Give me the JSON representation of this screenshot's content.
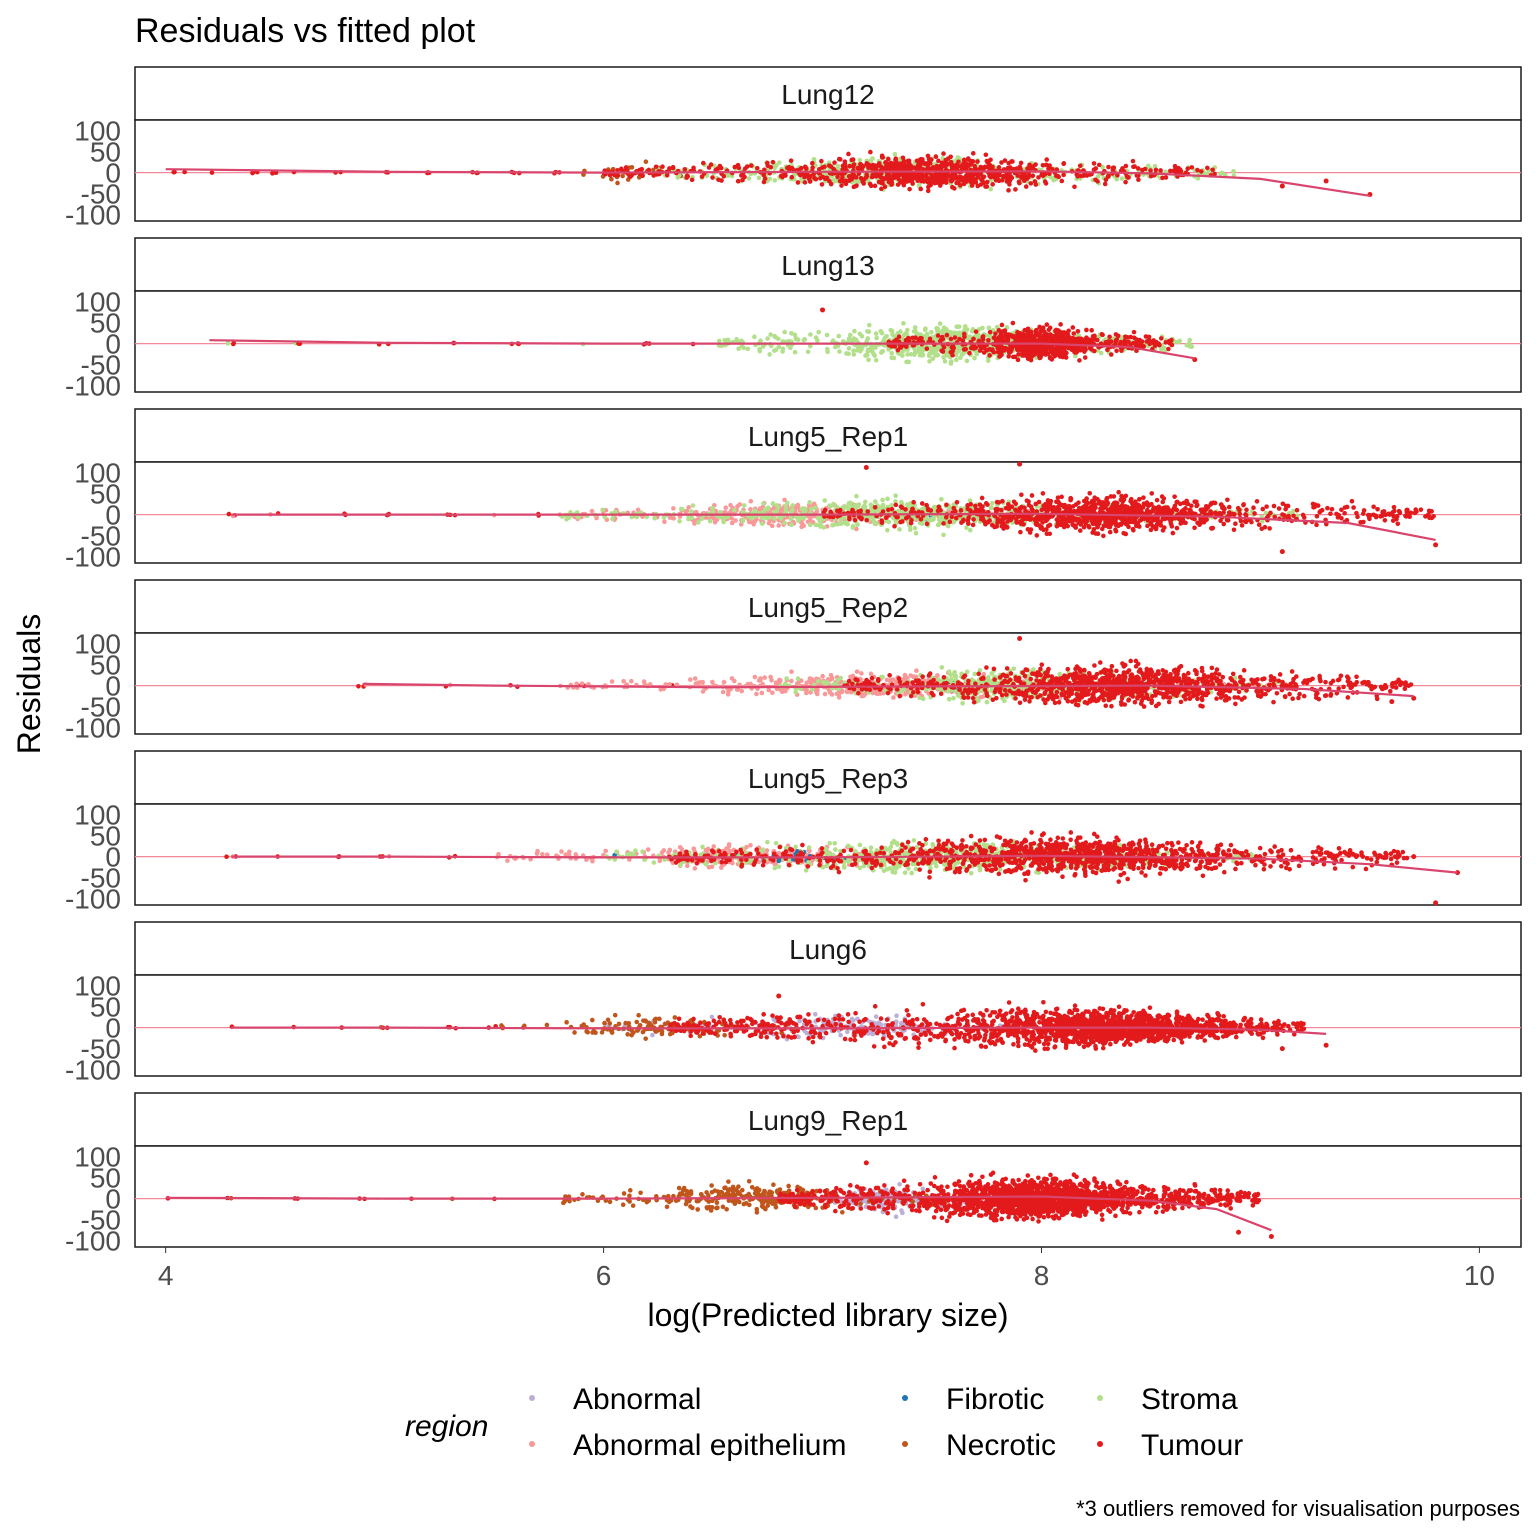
{
  "chart_data": {
    "type": "scatter",
    "title": "Residuals vs fitted plot",
    "xlabel": "log(Predicted library size)",
    "ylabel": "Residuals",
    "xlim": [
      3.86,
      10.19
    ],
    "ylim": [
      -115,
      125
    ],
    "x_ticks": [
      "4",
      "6",
      "8",
      "10"
    ],
    "y_ticks": [
      "100",
      "50",
      "0",
      "-50",
      "-100"
    ],
    "caption": "*3 outliers removed for visualisation purposes",
    "legend": {
      "title": "region",
      "position": "bottom",
      "entries": [
        {
          "name": "Abnormal",
          "color": "#bcaed6"
        },
        {
          "name": "Abnormal epithelium",
          "color": "#f89898"
        },
        {
          "name": "Fibrotic",
          "color": "#1f78b4"
        },
        {
          "name": "Necrotic",
          "color": "#c0561b"
        },
        {
          "name": "Stroma",
          "color": "#b2df8a"
        },
        {
          "name": "Tumour",
          "color": "#e31a1c"
        }
      ]
    },
    "reference_line": {
      "y": 0,
      "color": "#f28a9a"
    },
    "smooth_color": "#d9456c",
    "panels": [
      {
        "name": "Lung12",
        "smooth": [
          [
            4.0,
            8
          ],
          [
            5.0,
            2
          ],
          [
            6.0,
            0
          ],
          [
            7.0,
            2
          ],
          [
            8.0,
            3
          ],
          [
            8.5,
            -2
          ],
          [
            9.0,
            -15
          ],
          [
            9.5,
            -55
          ]
        ],
        "groups": [
          {
            "region": "Tumour",
            "x_range": [
              6.0,
              8.8
            ],
            "spread": 60,
            "n": 900,
            "dense_center": 7.5
          },
          {
            "region": "Stroma",
            "x_range": [
              6.2,
              8.9
            ],
            "spread": 55,
            "n": 500,
            "dense_center": 7.2
          },
          {
            "region": "Necrotic",
            "x_range": [
              5.9,
              6.4
            ],
            "spread": 40,
            "n": 30,
            "dense_center": 6.1
          }
        ],
        "sparse_x": [
          4.03,
          4.1,
          4.2,
          4.4,
          4.5,
          4.6,
          4.8,
          5.0,
          5.2,
          5.4,
          5.6,
          5.8
        ],
        "outliers": [
          [
            9.5,
            -52
          ],
          [
            9.3,
            -20
          ],
          [
            9.1,
            -32
          ]
        ]
      },
      {
        "name": "Lung13",
        "smooth": [
          [
            4.2,
            8
          ],
          [
            5.0,
            2
          ],
          [
            6.0,
            0
          ],
          [
            7.0,
            0
          ],
          [
            8.0,
            0
          ],
          [
            8.4,
            -8
          ],
          [
            8.7,
            -35
          ]
        ],
        "groups": [
          {
            "region": "Stroma",
            "x_range": [
              6.5,
              8.7
            ],
            "spread": 65,
            "n": 800,
            "dense_center": 7.6
          },
          {
            "region": "Tumour",
            "x_range": [
              7.3,
              8.6
            ],
            "spread": 60,
            "n": 700,
            "dense_center": 8.0
          }
        ],
        "sparse_x": [
          4.3,
          4.6,
          5.0,
          5.3,
          5.6,
          5.9,
          6.2,
          6.4
        ],
        "outliers": [
          [
            7.0,
            80
          ],
          [
            8.7,
            -38
          ]
        ]
      },
      {
        "name": "Lung5_Rep1",
        "smooth": [
          [
            4.3,
            0
          ],
          [
            5.0,
            0
          ],
          [
            6.0,
            0
          ],
          [
            7.0,
            0
          ],
          [
            8.0,
            2
          ],
          [
            8.8,
            -5
          ],
          [
            9.4,
            -20
          ],
          [
            9.8,
            -60
          ]
        ],
        "groups": [
          {
            "region": "Abnormal epithelium",
            "x_range": [
              5.8,
              8.0
            ],
            "spread": 45,
            "n": 350,
            "dense_center": 6.8
          },
          {
            "region": "Stroma",
            "x_range": [
              5.8,
              9.2
            ],
            "spread": 55,
            "n": 600,
            "dense_center": 7.4
          },
          {
            "region": "Tumour",
            "x_range": [
              7.0,
              9.8
            ],
            "spread": 70,
            "n": 1100,
            "dense_center": 8.3
          },
          {
            "region": "Fibrotic",
            "x_range": [
              7.3,
              7.6
            ],
            "spread": 25,
            "n": 15,
            "dense_center": 7.45
          }
        ],
        "sparse_x": [
          4.3,
          4.5,
          4.8,
          5.0,
          5.3,
          5.5,
          5.7
        ],
        "outliers": [
          [
            7.2,
            112
          ],
          [
            7.9,
            125
          ],
          [
            9.8,
            -72
          ],
          [
            9.1,
            -88
          ]
        ]
      },
      {
        "name": "Lung5_Rep2",
        "smooth": [
          [
            4.9,
            4
          ],
          [
            5.5,
            0
          ],
          [
            6.5,
            -4
          ],
          [
            7.5,
            -2
          ],
          [
            8.5,
            0
          ],
          [
            9.2,
            -8
          ],
          [
            9.7,
            -25
          ]
        ],
        "groups": [
          {
            "region": "Abnormal epithelium",
            "x_range": [
              5.8,
              9.2
            ],
            "spread": 45,
            "n": 450,
            "dense_center": 7.2
          },
          {
            "region": "Stroma",
            "x_range": [
              6.8,
              9.1
            ],
            "spread": 60,
            "n": 500,
            "dense_center": 7.9
          },
          {
            "region": "Tumour",
            "x_range": [
              7.1,
              9.7
            ],
            "spread": 75,
            "n": 1100,
            "dense_center": 8.4
          },
          {
            "region": "Fibrotic",
            "x_range": [
              7.5,
              7.7
            ],
            "spread": 20,
            "n": 12,
            "dense_center": 7.6
          }
        ],
        "sparse_x": [
          4.9,
          5.3,
          5.6,
          5.9,
          6.1,
          6.3
        ],
        "outliers": [
          [
            7.9,
            112
          ],
          [
            9.6,
            -38
          ],
          [
            9.7,
            -30
          ]
        ]
      },
      {
        "name": "Lung5_Rep3",
        "smooth": [
          [
            4.3,
            0
          ],
          [
            5.0,
            0
          ],
          [
            6.0,
            -2
          ],
          [
            7.0,
            -2
          ],
          [
            8.0,
            2
          ],
          [
            9.0,
            -5
          ],
          [
            9.5,
            -18
          ],
          [
            9.9,
            -38
          ]
        ],
        "groups": [
          {
            "region": "Abnormal epithelium",
            "x_range": [
              5.5,
              8.0
            ],
            "spread": 40,
            "n": 350,
            "dense_center": 6.7
          },
          {
            "region": "Stroma",
            "x_range": [
              6.0,
              9.0
            ],
            "spread": 60,
            "n": 600,
            "dense_center": 7.6
          },
          {
            "region": "Tumour",
            "x_range": [
              6.3,
              9.7
            ],
            "spread": 70,
            "n": 1200,
            "dense_center": 8.2
          },
          {
            "region": "Fibrotic",
            "x_range": [
              6.0,
              7.3
            ],
            "spread": 20,
            "n": 25,
            "dense_center": 6.9
          }
        ],
        "sparse_x": [
          4.3,
          4.5,
          4.8,
          5.0,
          5.3
        ],
        "outliers": [
          [
            9.9,
            -38
          ],
          [
            9.8,
            -110
          ],
          [
            9.6,
            -20
          ],
          [
            9.7,
            0
          ]
        ]
      },
      {
        "name": "Lung6",
        "smooth": [
          [
            4.3,
            0
          ],
          [
            5.0,
            0
          ],
          [
            6.0,
            -2
          ],
          [
            7.0,
            -2
          ],
          [
            8.0,
            0
          ],
          [
            8.5,
            0
          ],
          [
            9.0,
            -5
          ],
          [
            9.3,
            -15
          ]
        ],
        "groups": [
          {
            "region": "Necrotic",
            "x_range": [
              5.5,
              6.9
            ],
            "spread": 40,
            "n": 120,
            "dense_center": 6.2
          },
          {
            "region": "Abnormal",
            "x_range": [
              6.0,
              7.9
            ],
            "spread": 45,
            "n": 200,
            "dense_center": 7.2
          },
          {
            "region": "Tumour",
            "x_range": [
              6.3,
              9.2
            ],
            "spread": 75,
            "n": 1800,
            "dense_center": 8.3
          }
        ],
        "sparse_x": [
          4.3,
          4.6,
          4.8,
          5.0,
          5.3,
          5.5
        ],
        "outliers": [
          [
            6.8,
            75
          ],
          [
            9.3,
            -42
          ],
          [
            9.1,
            -50
          ]
        ]
      },
      {
        "name": "Lung9_Rep1",
        "smooth": [
          [
            4.0,
            2
          ],
          [
            5.0,
            0
          ],
          [
            6.0,
            0
          ],
          [
            7.0,
            2
          ],
          [
            8.0,
            5
          ],
          [
            8.5,
            -5
          ],
          [
            8.8,
            -25
          ],
          [
            9.05,
            -75
          ]
        ],
        "groups": [
          {
            "region": "Necrotic",
            "x_range": [
              5.8,
              7.6
            ],
            "spread": 50,
            "n": 300,
            "dense_center": 6.7
          },
          {
            "region": "Abnormal",
            "x_range": [
              7.0,
              7.8
            ],
            "spread": 50,
            "n": 150,
            "dense_center": 7.3
          },
          {
            "region": "Tumour",
            "x_range": [
              6.8,
              9.0
            ],
            "spread": 75,
            "n": 1800,
            "dense_center": 8.0
          }
        ],
        "sparse_x": [
          4.0,
          4.3,
          4.6,
          4.9,
          5.1,
          5.3,
          5.5
        ],
        "outliers": [
          [
            9.05,
            -90
          ],
          [
            8.9,
            -80
          ],
          [
            7.2,
            85
          ]
        ]
      }
    ]
  }
}
